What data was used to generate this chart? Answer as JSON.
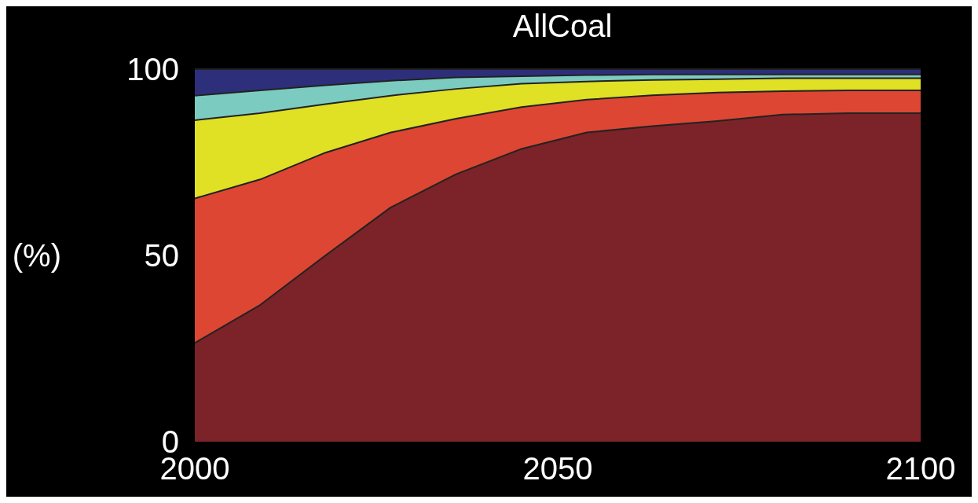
{
  "chart_data": {
    "type": "area",
    "title": "AllCoal",
    "ylabel": "(%)",
    "stacked": true,
    "x": [
      2000,
      2009,
      2018,
      2027,
      2036,
      2045,
      2054,
      2063,
      2072,
      2081,
      2090,
      2100
    ],
    "xlim": [
      2000,
      2100
    ],
    "xticks": [
      2000,
      2050,
      2100
    ],
    "ylim": [
      0,
      100
    ],
    "yticks": [
      0,
      50,
      100
    ],
    "series": [
      {
        "color": "#7b2328",
        "values": [
          26.5,
          36.7,
          50,
          62.9,
          71.8,
          78.6,
          83,
          84.7,
          86.1,
          87.8,
          88.2,
          88.2
        ]
      },
      {
        "color": "#dc4632",
        "values": [
          38.8,
          33.7,
          27.6,
          20.1,
          14.9,
          11.2,
          8.8,
          8.3,
          7.6,
          6.3,
          6.1,
          6.1
        ]
      },
      {
        "color": "#e0e024",
        "values": [
          21,
          17.8,
          13,
          9.9,
          8,
          6.3,
          4.9,
          4.1,
          3.6,
          3.5,
          3.3,
          3.3
        ]
      },
      {
        "color": "#7ccbc0",
        "values": [
          6.6,
          6.1,
          5.1,
          4,
          3.1,
          2,
          1.7,
          1.5,
          1.3,
          1,
          1,
          1
        ]
      },
      {
        "color": "#2e2f7a",
        "values": [
          7.1,
          5.7,
          4.3,
          3.1,
          2.2,
          1.9,
          1.6,
          1.4,
          1.4,
          1.4,
          1.4,
          1.4
        ]
      }
    ]
  }
}
